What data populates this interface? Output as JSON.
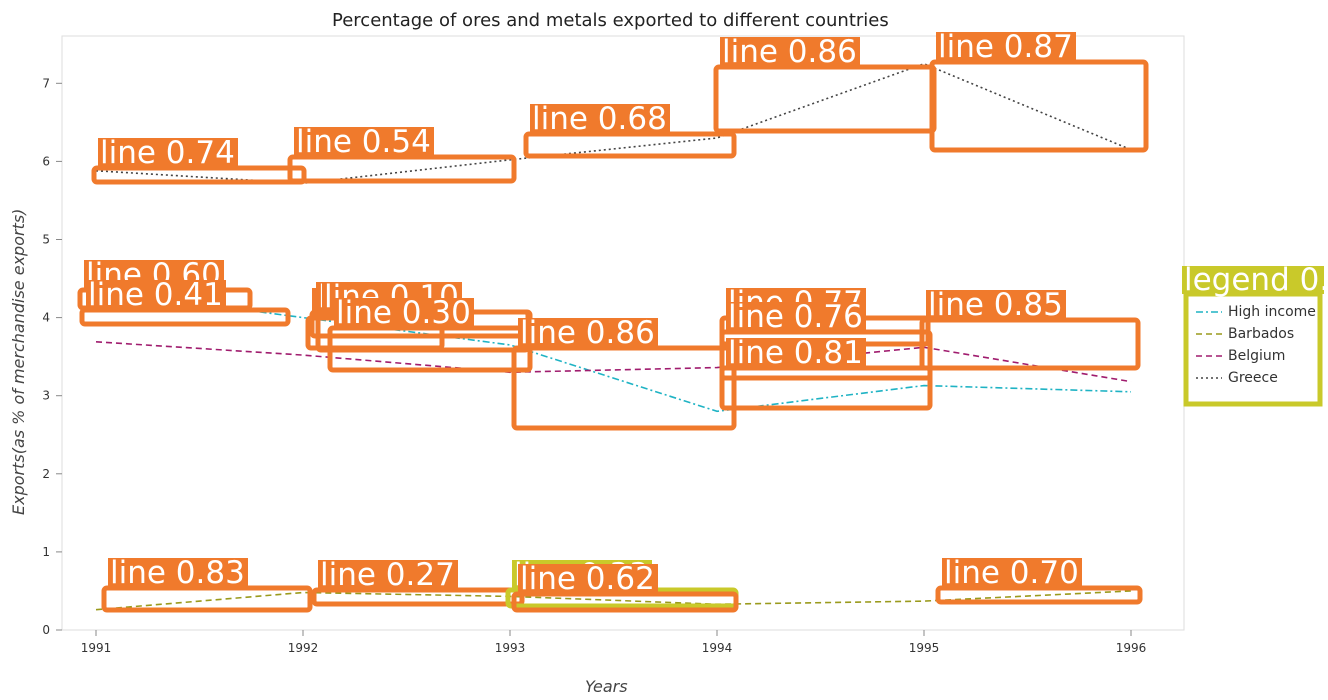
{
  "chart_data": {
    "type": "line",
    "title": "Percentage of ores and metals exported to different countries",
    "xlabel": "Years",
    "ylabel": "Exports(as % of merchandise exports)",
    "x": [
      "1991",
      "1992",
      "1993",
      "1994",
      "1995",
      "1996"
    ],
    "yticks": [
      "0",
      "1",
      "2",
      "3",
      "4",
      "5",
      "6",
      "7"
    ],
    "ylim": [
      0,
      7.6
    ],
    "grid": false,
    "legend": "right",
    "series": [
      {
        "name": "High income",
        "color": "#1fb3c4",
        "dash": "dashdot",
        "values": [
          4.35,
          4.0,
          3.65,
          2.8,
          3.13,
          3.05
        ]
      },
      {
        "name": "Barbados",
        "color": "#9a9a1c",
        "dash": "dashed",
        "values": [
          0.26,
          0.48,
          0.43,
          0.33,
          0.37,
          0.5
        ]
      },
      {
        "name": "Belgium",
        "color": "#a01c6e",
        "dash": "dashed",
        "values": [
          3.69,
          3.52,
          3.3,
          3.36,
          3.62,
          3.18
        ]
      },
      {
        "name": "Greece",
        "color": "#444444",
        "dash": "dotted",
        "values": [
          5.88,
          5.72,
          6.02,
          6.3,
          7.25,
          6.15
        ]
      }
    ],
    "annotations": [
      {
        "text": "line 0.74",
        "style": "orange"
      },
      {
        "text": "line 0.54",
        "style": "orange"
      },
      {
        "text": "line 0.68",
        "style": "orange"
      },
      {
        "text": "line 0.86",
        "style": "orange"
      },
      {
        "text": "line 0.87",
        "style": "orange"
      },
      {
        "text": "line 0.60",
        "style": "orange"
      },
      {
        "text": "line 0.41",
        "style": "orange"
      },
      {
        "text": "line 0.68",
        "style": "orange"
      },
      {
        "text": "line 0.59",
        "style": "orange"
      },
      {
        "text": "line 0.10",
        "style": "orange"
      },
      {
        "text": "line 0.30",
        "style": "orange"
      },
      {
        "text": "line 0.86",
        "style": "orange"
      },
      {
        "text": "line 0.77",
        "style": "orange"
      },
      {
        "text": "line 0.76",
        "style": "orange"
      },
      {
        "text": "line 0.81",
        "style": "orange"
      },
      {
        "text": "line 0.85",
        "style": "orange"
      },
      {
        "text": "line 0.83",
        "style": "orange"
      },
      {
        "text": "line 0.27",
        "style": "orange"
      },
      {
        "text": "line 0.33",
        "style": "yellow"
      },
      {
        "text": "line 0.62",
        "style": "orange"
      },
      {
        "text": "line 0.70",
        "style": "orange"
      },
      {
        "text": "legend 0.",
        "style": "yellow"
      }
    ]
  }
}
